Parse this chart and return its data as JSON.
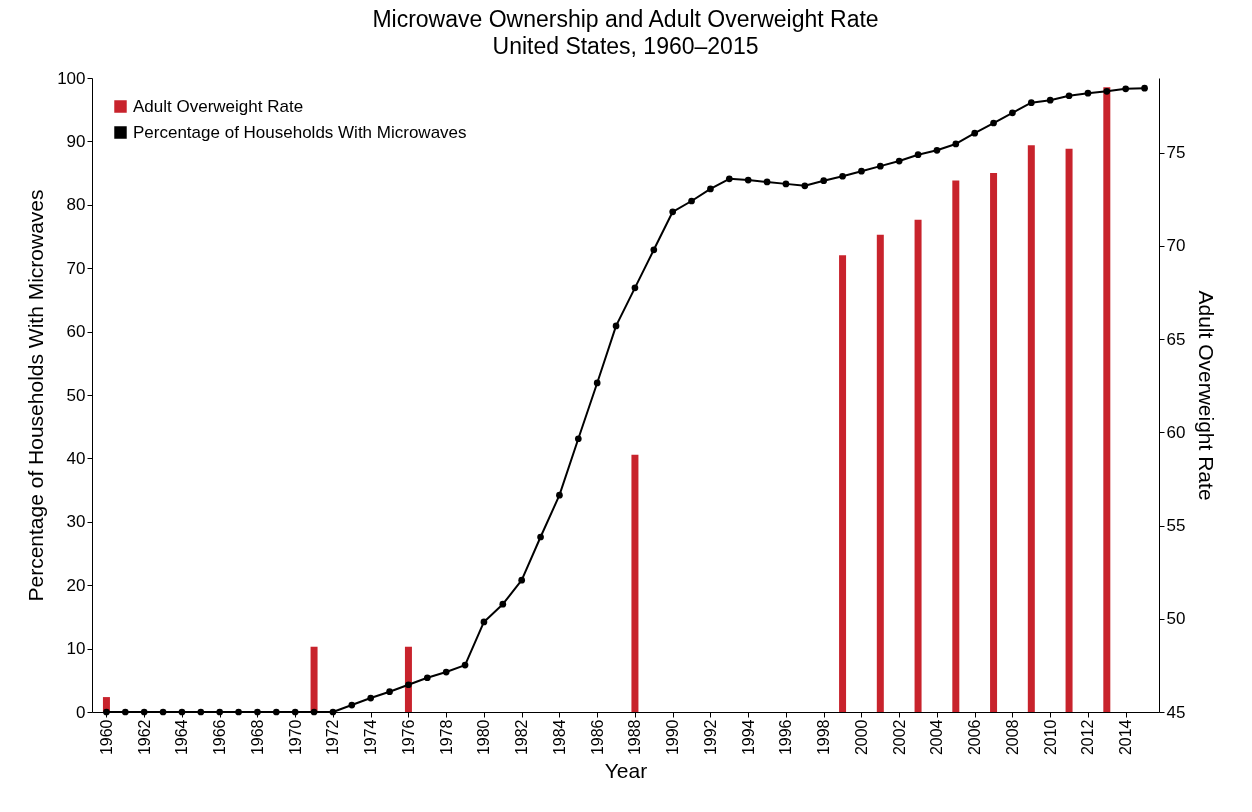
{
  "chart_data": {
    "type": "line",
    "title": "Microwave Ownership and Adult Overweight Rate",
    "subtitle": "United States, 1960–2015",
    "xlabel": "Year",
    "ylabel": "Percentage of Households With Microwaves",
    "y2label": "Adult Overweight Rate",
    "xlim": [
      1959.5,
      2015.5
    ],
    "xticks": [
      1960,
      1962,
      1964,
      1966,
      1968,
      1970,
      1972,
      1974,
      1976,
      1978,
      1980,
      1982,
      1984,
      1986,
      1988,
      1990,
      1992,
      1994,
      1996,
      1998,
      2000,
      2002,
      2004,
      2006,
      2008,
      2010,
      2012,
      2014
    ],
    "ylim": [
      0,
      100
    ],
    "yticks": [
      0,
      10,
      20,
      30,
      40,
      50,
      60,
      70,
      80,
      90,
      100
    ],
    "y2lim": [
      45,
      79
    ],
    "y2ticks": [
      45,
      50,
      55,
      60,
      65,
      70,
      75
    ],
    "grid": false,
    "legend": "top left",
    "marker": "circle",
    "line_style": "solid",
    "series": [
      {
        "name": "Adult Overweight Rate",
        "type": "bar",
        "axis": "y2",
        "color": "#c8232c",
        "x": [
          1960,
          1971,
          1976,
          1988,
          1999,
          2001,
          2003,
          2005,
          2007,
          2009,
          2011,
          2013
        ],
        "values": [
          45.8,
          48.5,
          48.5,
          58.8,
          69.5,
          70.6,
          71.4,
          73.5,
          73.9,
          75.4,
          75.2,
          78.5
        ]
      },
      {
        "name": "Percentage of Households With Microwaves",
        "color": "#000000",
        "x": [
          1960,
          1961,
          1962,
          1963,
          1964,
          1965,
          1966,
          1967,
          1968,
          1969,
          1970,
          1971,
          1972,
          1973,
          1974,
          1975,
          1976,
          1977,
          1978,
          1979,
          1980,
          1981,
          1982,
          1983,
          1984,
          1985,
          1986,
          1987,
          1988,
          1989,
          1990,
          1991,
          1992,
          1993,
          1994,
          1995,
          1996,
          1997,
          1998,
          1999,
          2000,
          2001,
          2002,
          2003,
          2004,
          2005,
          2006,
          2007,
          2008,
          2009,
          2010,
          2011,
          2012,
          2013,
          2014,
          2015
        ],
        "values": [
          0,
          0,
          0,
          0,
          0,
          0,
          0,
          0,
          0,
          0,
          0,
          0,
          0,
          1.1,
          2.2,
          3.2,
          4.3,
          5.4,
          6.3,
          7.4,
          14.2,
          17,
          20.8,
          27.6,
          34.2,
          43.1,
          51.9,
          60.9,
          66.9,
          72.9,
          78.9,
          80.6,
          82.5,
          84.1,
          83.9,
          83.6,
          83.3,
          83,
          83.8,
          84.5,
          85.3,
          86.1,
          86.9,
          87.9,
          88.6,
          89.6,
          91.3,
          92.9,
          94.5,
          96.1,
          96.5,
          97.2,
          97.6,
          97.9,
          98.3,
          98.4
        ]
      }
    ]
  }
}
